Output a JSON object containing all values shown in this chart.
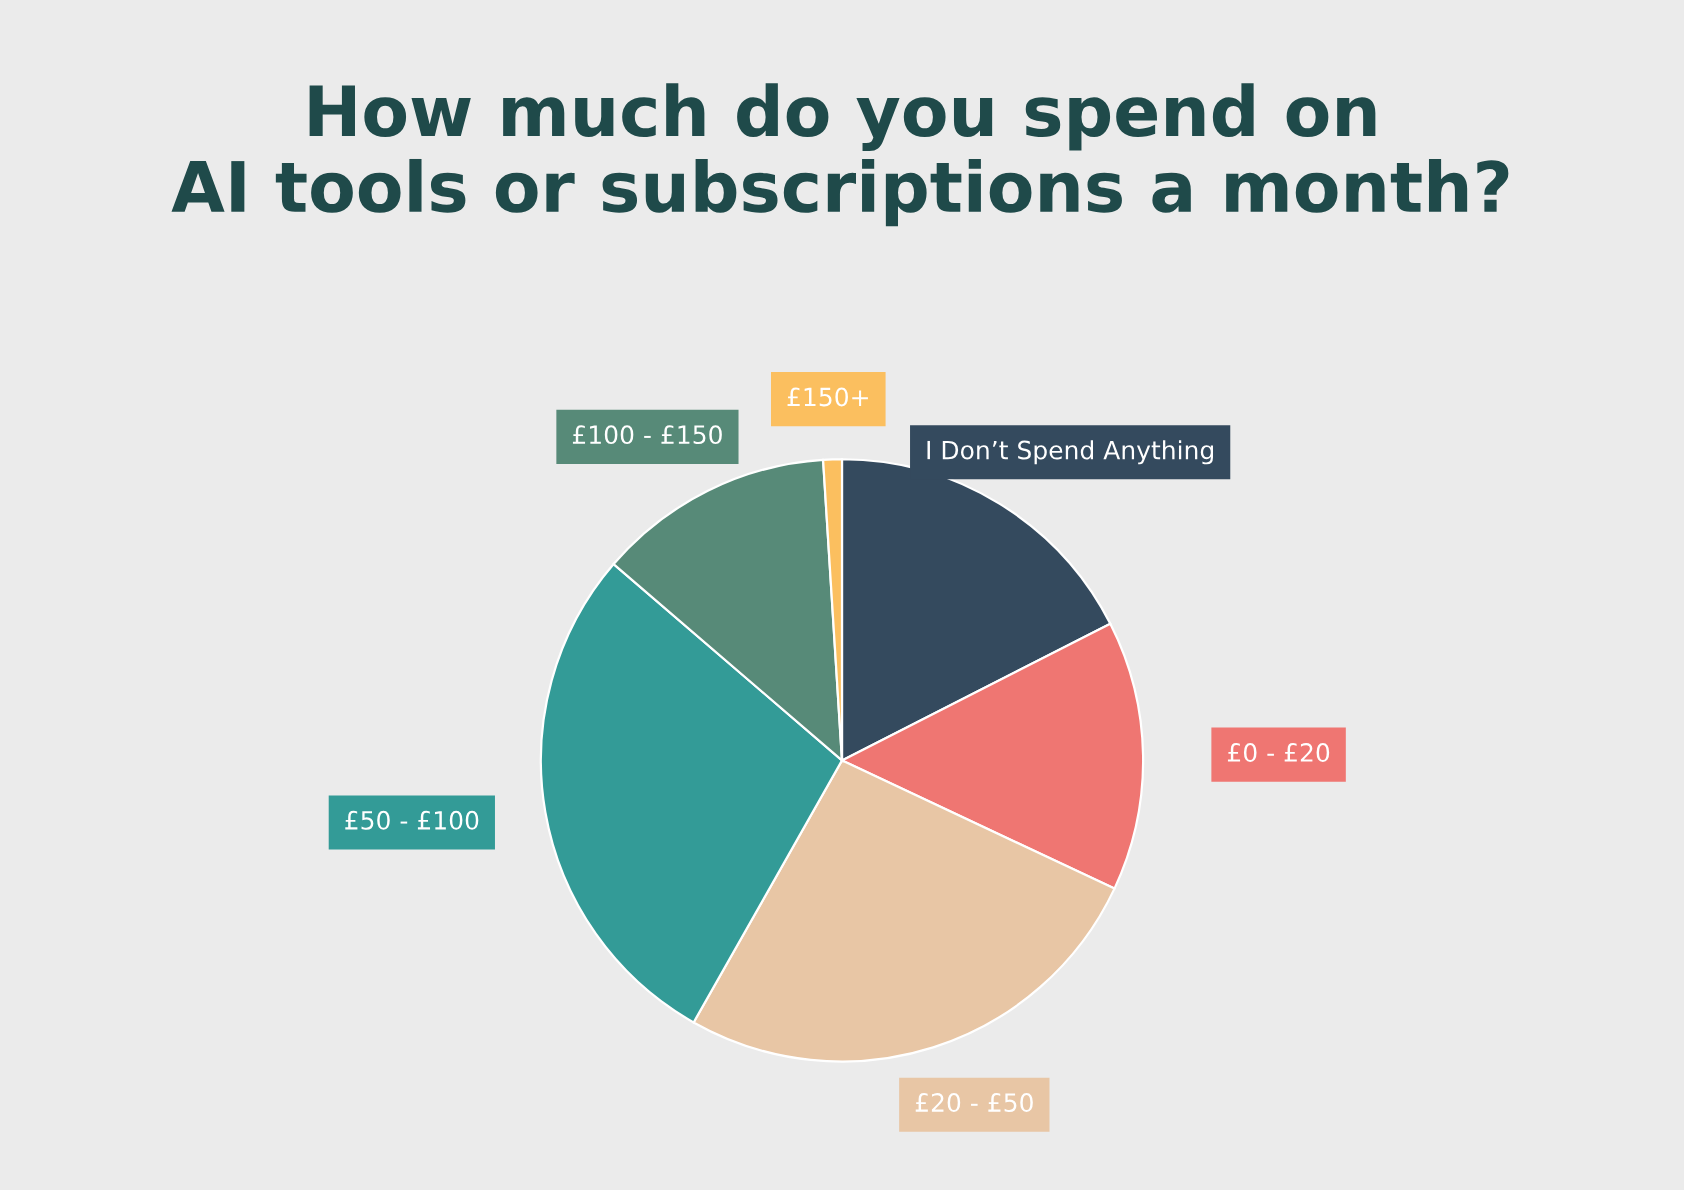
{
  "chart_data": {
    "type": "pie",
    "title": "How much do you spend on\nAI tools or subscriptions a month?",
    "categories": [
      "I Don’t Spend Anything",
      "£0 - £20",
      "£20 - £50",
      "£50 - £100",
      "£100 - £150",
      "£150+"
    ],
    "values": [
      17.5,
      14.5,
      26.2,
      28.1,
      12.7,
      1.0
    ],
    "colors": [
      "#344a5e",
      "#ef7672",
      "#e8c6a5",
      "#339b97",
      "#578a78",
      "#fbbf5f"
    ],
    "legend": false
  }
}
